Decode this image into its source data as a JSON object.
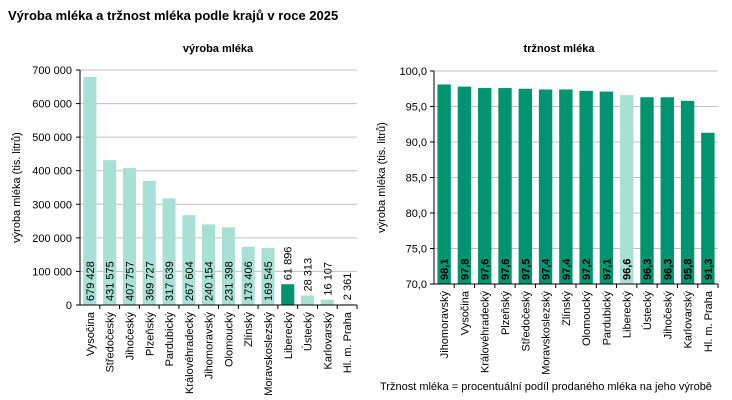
{
  "title": "Výroba mléka a tržnost mléka podle krajů v roce 2025",
  "colors": {
    "dark": "#009470",
    "light": "#a8e0d5",
    "grid": "#c0c0c0"
  },
  "chart_data": [
    {
      "type": "bar",
      "title": "výroba mléka",
      "ylabel": "výroba mléka (tis. litrů)",
      "xlabel": "",
      "ylim": [
        0,
        700000
      ],
      "yticks": [
        0,
        100000,
        200000,
        300000,
        400000,
        500000,
        600000,
        700000
      ],
      "ytick_labels": [
        "0",
        "100 000",
        "200 000",
        "300 000",
        "400 000",
        "500 000",
        "600 000",
        "700 000"
      ],
      "grid": true,
      "categories": [
        "Vysočina",
        "Středočeský",
        "Jihočeský",
        "Plzeňský",
        "Pardubický",
        "Královéhradecký",
        "Jihomoravský",
        "Olomoucký",
        "Zlínský",
        "Moravskoslezský",
        "Liberecký",
        "Ústecký",
        "Karlovarský",
        "Hl. m. Praha"
      ],
      "values": [
        679428,
        431575,
        407757,
        369727,
        317639,
        267604,
        240154,
        231398,
        173406,
        169545,
        61896,
        28313,
        16107,
        2361
      ],
      "value_labels": [
        "679 428",
        "431 575",
        "407 757",
        "369 727",
        "317 639",
        "267 604",
        "240 154",
        "231 398",
        "173 406",
        "169 545",
        "61 896",
        "28 313",
        "16 107",
        "2 361"
      ],
      "highlight": "Liberecký"
    },
    {
      "type": "bar",
      "title": "tržnost mléka",
      "ylabel": "výroba mléka (tis. litrů)",
      "xlabel": "",
      "ylim": [
        70,
        100
      ],
      "yticks": [
        70,
        75,
        80,
        85,
        90,
        95,
        100
      ],
      "ytick_labels": [
        "70,0",
        "75,0",
        "80,0",
        "85,0",
        "90,0",
        "95,0",
        "100,0"
      ],
      "grid": true,
      "categories": [
        "Jihomoravský",
        "Vysočina",
        "Královéhradecký",
        "Plzeňský",
        "Středočeský",
        "Moravskoslezský",
        "Zlínský",
        "Olomoucký",
        "Pardubický",
        "Liberecký",
        "Ústecký",
        "Jihočeský",
        "Karlovarský",
        "Hl. m. Praha"
      ],
      "values": [
        98.1,
        97.8,
        97.6,
        97.6,
        97.5,
        97.4,
        97.4,
        97.2,
        97.1,
        96.6,
        96.3,
        96.3,
        95.8,
        91.3
      ],
      "value_labels": [
        "98,1",
        "97,8",
        "97,6",
        "97,6",
        "97,5",
        "97,4",
        "97,4",
        "97,2",
        "97,1",
        "96,6",
        "96,3",
        "96,3",
        "95,8",
        "91,3"
      ],
      "highlight": "Liberecký",
      "note": "Tržnost mléka = procentuální podíl prodaného mléka na jeho výrobě"
    }
  ]
}
